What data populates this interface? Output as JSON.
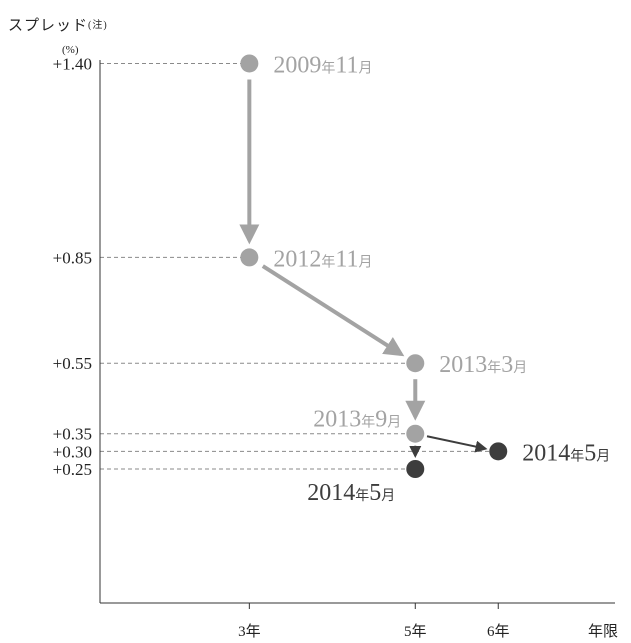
{
  "chart_data": {
    "type": "scatter",
    "ylabel": "スプレッド",
    "ylabel_note": "(注)",
    "yunit": "(%)",
    "xlabel": "年限",
    "x_ticks": [
      {
        "value": 3,
        "label": "3年"
      },
      {
        "value": 5,
        "label": "5年"
      },
      {
        "value": 6,
        "label": "6年"
      }
    ],
    "y_ticks": [
      {
        "value": 1.4,
        "label": "+1.40"
      },
      {
        "value": 0.85,
        "label": "+0.85"
      },
      {
        "value": 0.55,
        "label": "+0.55"
      },
      {
        "value": 0.35,
        "label": "+0.35"
      },
      {
        "value": 0.3,
        "label": "+0.30"
      },
      {
        "value": 0.25,
        "label": "+0.25"
      }
    ],
    "xlim": [
      1.2,
      7.6
    ],
    "ylim": [
      -0.13,
      1.58
    ],
    "gridlines": "dashed from y-axis to each point",
    "points": [
      {
        "x": 3,
        "y": 1.4,
        "year": "2009",
        "year_unit": "年",
        "month": "11",
        "month_unit": "月",
        "color": "#a3a3a3",
        "label_pos": "right"
      },
      {
        "x": 3,
        "y": 0.85,
        "year": "2012",
        "year_unit": "年",
        "month": "11",
        "month_unit": "月",
        "color": "#a3a3a3",
        "label_pos": "right"
      },
      {
        "x": 5,
        "y": 0.55,
        "year": "2013",
        "year_unit": "年",
        "month": "3",
        "month_unit": "月",
        "color": "#a3a3a3",
        "label_pos": "right"
      },
      {
        "x": 5,
        "y": 0.35,
        "year": "2013",
        "year_unit": "年",
        "month": "9",
        "month_unit": "月",
        "color": "#a3a3a3",
        "label_pos": "above-left"
      },
      {
        "x": 5,
        "y": 0.25,
        "year": "2014",
        "year_unit": "年",
        "month": "5",
        "month_unit": "月",
        "color": "#3d3d3d",
        "label_pos": "below-left"
      },
      {
        "x": 6,
        "y": 0.3,
        "year": "2014",
        "year_unit": "年",
        "month": "5",
        "month_unit": "月",
        "color": "#3d3d3d",
        "label_pos": "right"
      }
    ],
    "arrows": [
      {
        "from": 0,
        "to": 1,
        "color": "#a3a3a3",
        "weight": "thick"
      },
      {
        "from": 1,
        "to": 2,
        "color": "#a3a3a3",
        "weight": "thick"
      },
      {
        "from": 2,
        "to": 3,
        "color": "#a3a3a3",
        "weight": "thick"
      },
      {
        "from": 3,
        "to": 4,
        "color": "#3d3d3d",
        "weight": "thin"
      },
      {
        "from": 3,
        "to": 5,
        "color": "#3d3d3d",
        "weight": "thin"
      }
    ]
  }
}
